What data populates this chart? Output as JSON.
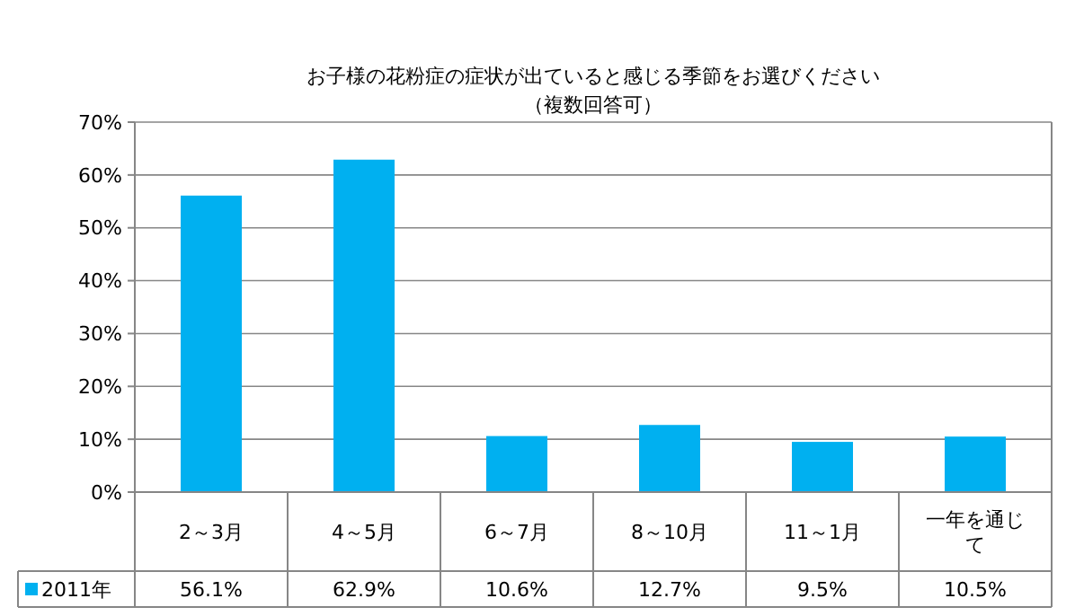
{
  "chart_data": {
    "type": "bar",
    "title": "お子様の花粉症の症状が出ていると感じる季節をお選びください",
    "subtitle": "（複数回答可）",
    "categories": [
      "2～3月",
      "4～5月",
      "6～7月",
      "8～10月",
      "11～1月",
      "一年を通じて"
    ],
    "series": [
      {
        "name": "2011年",
        "color": "#00b0f0",
        "values": [
          56.1,
          62.9,
          10.6,
          12.7,
          9.5,
          10.5
        ],
        "value_labels": [
          "56.1%",
          "62.9%",
          "10.6%",
          "12.7%",
          "9.5%",
          "10.5%"
        ]
      }
    ],
    "ylim": [
      0,
      70
    ],
    "yticks": [
      {
        "value": 0,
        "label": "0%"
      },
      {
        "value": 10,
        "label": "10%"
      },
      {
        "value": 20,
        "label": "20%"
      },
      {
        "value": 30,
        "label": "30%"
      },
      {
        "value": 40,
        "label": "40%"
      },
      {
        "value": 50,
        "label": "50%"
      },
      {
        "value": 60,
        "label": "60%"
      },
      {
        "value": 70,
        "label": "70%"
      }
    ],
    "grid": "y",
    "legend": "bottom"
  }
}
